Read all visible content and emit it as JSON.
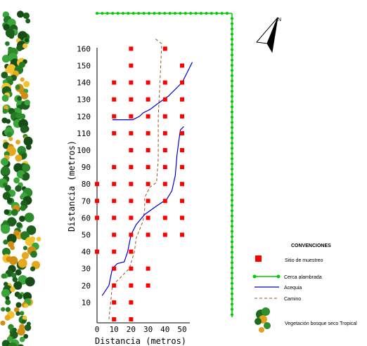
{
  "map": {
    "xlabel": "Distancia (metros)",
    "ylabel": "Distancia (metros)",
    "xticks": [
      0,
      10,
      20,
      30,
      40,
      50
    ],
    "yticks": [
      10,
      20,
      30,
      40,
      50,
      60,
      70,
      80,
      90,
      100,
      110,
      120,
      130,
      140,
      150,
      160
    ],
    "north_label": "N",
    "legend": {
      "title": "CONVENCIONES",
      "items": [
        {
          "key": "sample",
          "label": "Sitio de muestreo",
          "color": "#ff0000"
        },
        {
          "key": "fence",
          "label": "Cerca alambrada",
          "color": "#00cc00"
        },
        {
          "key": "canal",
          "label": "Acequia",
          "color": "#0000cc"
        },
        {
          "key": "road",
          "label": "Camino",
          "color": "#8b5a1a"
        },
        {
          "key": "forest",
          "label": "Vegetación bosque seco Tropical",
          "color": "#2a7a2a"
        }
      ]
    }
  },
  "chart_data": {
    "type": "scatter",
    "xlabel": "Distancia (metros)",
    "ylabel": "Distancia (metros)",
    "xlim": [
      0,
      55
    ],
    "ylim": [
      0,
      160
    ],
    "sampling_sites": [
      [
        10,
        0
      ],
      [
        20,
        0
      ],
      [
        10,
        10
      ],
      [
        20,
        10
      ],
      [
        10,
        20
      ],
      [
        20,
        20
      ],
      [
        30,
        20
      ],
      [
        10,
        30
      ],
      [
        20,
        30
      ],
      [
        30,
        30
      ],
      [
        0,
        40
      ],
      [
        10,
        40
      ],
      [
        20,
        40
      ],
      [
        10,
        50
      ],
      [
        20,
        50
      ],
      [
        30,
        50
      ],
      [
        40,
        50
      ],
      [
        50,
        50
      ],
      [
        0,
        60
      ],
      [
        10,
        60
      ],
      [
        20,
        60
      ],
      [
        30,
        60
      ],
      [
        40,
        60
      ],
      [
        50,
        60
      ],
      [
        0,
        70
      ],
      [
        10,
        70
      ],
      [
        20,
        70
      ],
      [
        30,
        70
      ],
      [
        40,
        70
      ],
      [
        50,
        70
      ],
      [
        0,
        80
      ],
      [
        10,
        80
      ],
      [
        20,
        80
      ],
      [
        30,
        80
      ],
      [
        40,
        80
      ],
      [
        50,
        80
      ],
      [
        10,
        90
      ],
      [
        20,
        90
      ],
      [
        30,
        90
      ],
      [
        40,
        90
      ],
      [
        50,
        90
      ],
      [
        20,
        100
      ],
      [
        30,
        100
      ],
      [
        40,
        100
      ],
      [
        50,
        100
      ],
      [
        10,
        110
      ],
      [
        20,
        110
      ],
      [
        30,
        110
      ],
      [
        40,
        110
      ],
      [
        50,
        110
      ],
      [
        10,
        120
      ],
      [
        20,
        120
      ],
      [
        30,
        120
      ],
      [
        40,
        120
      ],
      [
        50,
        120
      ],
      [
        10,
        130
      ],
      [
        20,
        130
      ],
      [
        30,
        130
      ],
      [
        40,
        130
      ],
      [
        50,
        130
      ],
      [
        10,
        140
      ],
      [
        20,
        140
      ],
      [
        30,
        140
      ],
      [
        40,
        140
      ],
      [
        50,
        140
      ],
      [
        20,
        150
      ],
      [
        50,
        150
      ],
      [
        20,
        160
      ],
      [
        40,
        160
      ]
    ],
    "canal_lower": [
      [
        3,
        14
      ],
      [
        7,
        20
      ],
      [
        9,
        30
      ],
      [
        12,
        33
      ],
      [
        16,
        34
      ],
      [
        18,
        40
      ],
      [
        20,
        50
      ],
      [
        23,
        56
      ],
      [
        28,
        62
      ],
      [
        35,
        67
      ],
      [
        41,
        71
      ],
      [
        44,
        76
      ],
      [
        46,
        85
      ],
      [
        47,
        97
      ],
      [
        48,
        105
      ],
      [
        49,
        112
      ],
      [
        51,
        114
      ]
    ],
    "canal_upper": [
      [
        9,
        118
      ],
      [
        21,
        118
      ],
      [
        25,
        120
      ],
      [
        27,
        122
      ],
      [
        31,
        124
      ],
      [
        35,
        127
      ],
      [
        42,
        132
      ],
      [
        50,
        140
      ],
      [
        53,
        146
      ],
      [
        56,
        152
      ]
    ],
    "road": [
      [
        7,
        0
      ],
      [
        9,
        20
      ],
      [
        13,
        24
      ],
      [
        17,
        28
      ],
      [
        19,
        30
      ],
      [
        22,
        40
      ],
      [
        23,
        48
      ],
      [
        25,
        53
      ],
      [
        27,
        58
      ],
      [
        28,
        65
      ],
      [
        28,
        72
      ],
      [
        31,
        78
      ],
      [
        35,
        81
      ],
      [
        36,
        95
      ],
      [
        36,
        120
      ],
      [
        37,
        140
      ],
      [
        38,
        163
      ],
      [
        34,
        166
      ]
    ]
  }
}
